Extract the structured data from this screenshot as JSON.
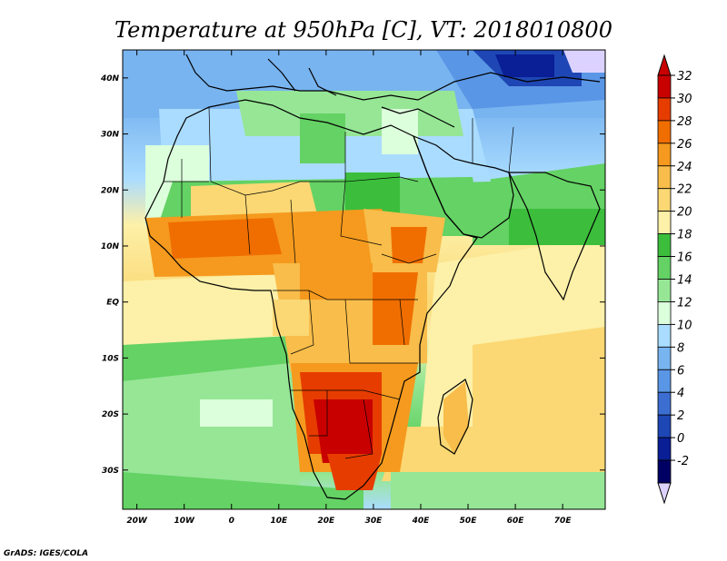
{
  "title": "Temperature at 950hPa [C], VT: 2018010800",
  "credit": "GrADS: IGES/COLA",
  "map": {
    "lon_range": [
      -23,
      79
    ],
    "lat_range": [
      -37,
      45
    ],
    "lat_ticks": [
      {
        "value": 40,
        "label": "40N"
      },
      {
        "value": 30,
        "label": "30N"
      },
      {
        "value": 20,
        "label": "20N"
      },
      {
        "value": 10,
        "label": "10N"
      },
      {
        "value": 0,
        "label": "EQ"
      },
      {
        "value": -10,
        "label": "10S"
      },
      {
        "value": -20,
        "label": "20S"
      },
      {
        "value": -30,
        "label": "30S"
      }
    ],
    "lon_ticks": [
      {
        "value": -20,
        "label": "20W"
      },
      {
        "value": -10,
        "label": "10W"
      },
      {
        "value": 0,
        "label": "0"
      },
      {
        "value": 10,
        "label": "10E"
      },
      {
        "value": 20,
        "label": "20E"
      },
      {
        "value": 30,
        "label": "30E"
      },
      {
        "value": 40,
        "label": "40E"
      },
      {
        "value": 50,
        "label": "50E"
      },
      {
        "value": 60,
        "label": "60E"
      },
      {
        "value": 70,
        "label": "70E"
      }
    ]
  },
  "colorbar": {
    "labels": [
      "32",
      "30",
      "28",
      "26",
      "24",
      "22",
      "20",
      "18",
      "16",
      "14",
      "12",
      "10",
      "8",
      "6",
      "4",
      "2",
      "0",
      "-2"
    ],
    "colors": [
      "#c80000",
      "#e63c00",
      "#f06e00",
      "#f59a1e",
      "#f8bd4a",
      "#fbd874",
      "#fdf0a8",
      "#3cbe3c",
      "#64d264",
      "#96e696",
      "#dcffdc",
      "#aadcff",
      "#78b4f0",
      "#5a96e6",
      "#3c6ed2",
      "#1e46b4",
      "#0a1e96",
      "#000064"
    ],
    "overflow_high": "#c80000",
    "overflow_low": "#dcd2ff"
  }
}
